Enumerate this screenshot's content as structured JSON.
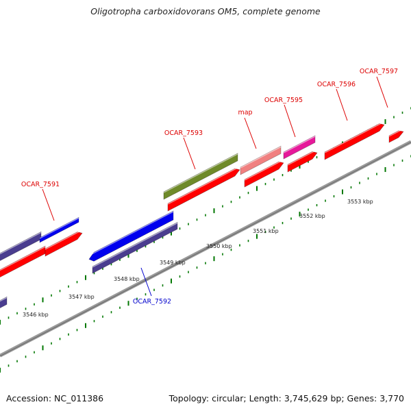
{
  "title": "Oligotropha carboxidovorans OM5, complete genome",
  "footer": {
    "accession": "Accession: NC_011386",
    "summary": "Topology: circular; Length: 3,745,629 bp; Genes: 3,770"
  },
  "colors": {
    "forward_cds": "#ff0000",
    "reverse_cds": "#0000ee",
    "reverse_gene": "#4a3d8f",
    "forward_gene_olive": "#6f8a2a",
    "forward_gene_pink": "#f08080",
    "forward_gene_magenta": "#e6199a",
    "tick_marks": "#007700",
    "backbone": "#888888",
    "label_forward": "#dd0000",
    "label_reverse": "#0000cc"
  },
  "scale_ticks": [
    "3546 kbp",
    "3547 kbp",
    "3548 kbp",
    "3549 kbp",
    "3550 kbp",
    "3551 kbp",
    "3552 kbp",
    "3553 kbp"
  ],
  "gene_labels": [
    {
      "name": "OCAR_7591",
      "strand": "forward"
    },
    {
      "name": "OCAR_7592",
      "strand": "reverse"
    },
    {
      "name": "OCAR_7593",
      "strand": "forward"
    },
    {
      "name": "map",
      "strand": "forward"
    },
    {
      "name": "OCAR_7595",
      "strand": "forward"
    },
    {
      "name": "OCAR_7596",
      "strand": "forward"
    },
    {
      "name": "OCAR_7597",
      "strand": "forward"
    }
  ]
}
